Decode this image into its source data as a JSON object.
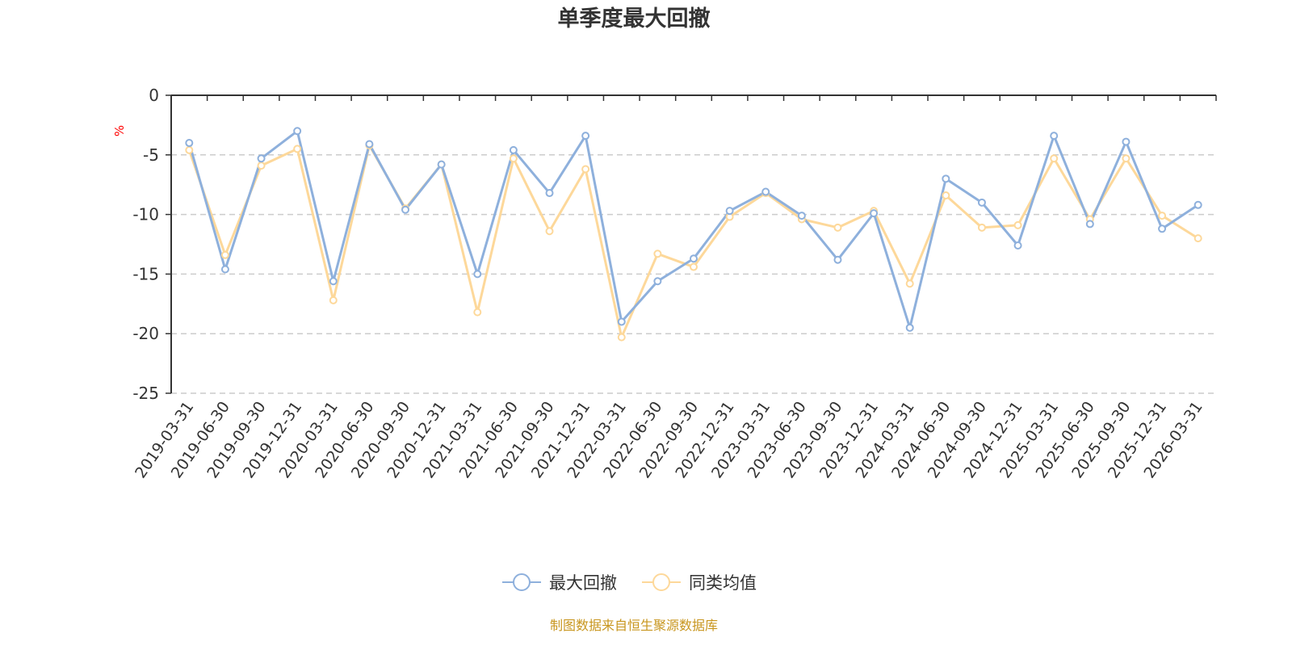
{
  "chart_data": {
    "type": "line",
    "title": "单季度最大回撤",
    "ylabel": "%",
    "ylim": [
      -25,
      0
    ],
    "yticks": [
      0,
      -5,
      -10,
      -15,
      -20,
      -25
    ],
    "grid": true,
    "categories": [
      "2019-03-31",
      "2019-06-30",
      "2019-09-30",
      "2019-12-31",
      "2020-03-31",
      "2020-06-30",
      "2020-09-30",
      "2020-12-31",
      "2021-03-31",
      "2021-06-30",
      "2021-09-30",
      "2021-12-31",
      "2022-03-31",
      "2022-06-30",
      "2022-09-30",
      "2022-12-31",
      "2023-03-31",
      "2023-06-30",
      "2023-09-30",
      "2023-12-31",
      "2024-03-31",
      "2024-06-30",
      "2024-09-30",
      "2024-12-31",
      "2025-03-31",
      "2025-06-30",
      "2025-09-30",
      "2025-12-31",
      "2026-03-31"
    ],
    "series": [
      {
        "name": "最大回撤",
        "color": "#8eb0dc",
        "values": [
          -4.0,
          -14.6,
          -5.3,
          -3.0,
          -15.6,
          -4.1,
          -9.6,
          -5.8,
          -15.0,
          -4.6,
          -8.2,
          -3.4,
          -19.0,
          -15.6,
          -13.7,
          -9.7,
          -8.1,
          -10.1,
          -13.8,
          -9.9,
          -19.5,
          -7.0,
          -9.0,
          -12.6,
          -3.4,
          -10.8,
          -3.9,
          -11.2,
          -9.2
        ]
      },
      {
        "name": "同类均值",
        "color": "#fdd89a",
        "values": [
          -4.6,
          -13.4,
          -5.9,
          -4.5,
          -17.2,
          -4.2,
          -9.5,
          -5.8,
          -18.2,
          -5.3,
          -11.4,
          -6.2,
          -20.3,
          -13.3,
          -14.4,
          -10.2,
          -8.2,
          -10.4,
          -11.1,
          -9.7,
          -15.8,
          -8.4,
          -11.1,
          -10.9,
          -5.3,
          -10.4,
          -5.3,
          -10.1,
          -12.0
        ]
      }
    ],
    "legend_position": "bottom-center"
  },
  "source_note": "制图数据来自恒生聚源数据库"
}
